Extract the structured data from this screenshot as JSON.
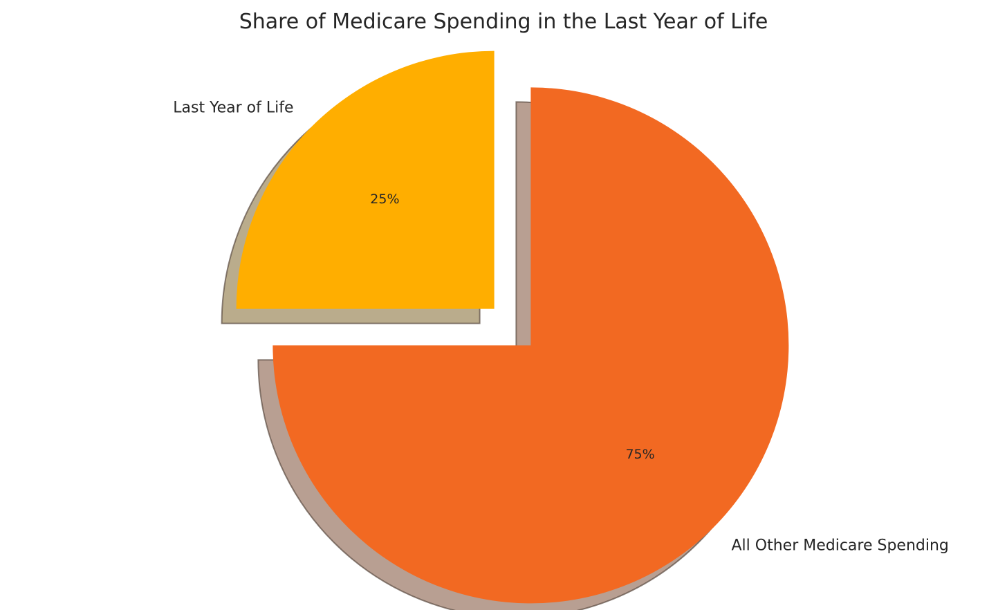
{
  "chart_data": {
    "type": "pie",
    "title": "Share of Medicare Spending in the Last Year of Life",
    "start_angle_deg": 90,
    "direction": "counterclockwise",
    "shadow": true,
    "slices": [
      {
        "label": "Last Year of Life",
        "value": 25,
        "pct_label": "25%",
        "color": "#FFAE00",
        "exploded": true
      },
      {
        "label": "All Other Medicare Spending",
        "value": 75,
        "pct_label": "75%",
        "color": "#F26922",
        "exploded": true
      }
    ]
  }
}
